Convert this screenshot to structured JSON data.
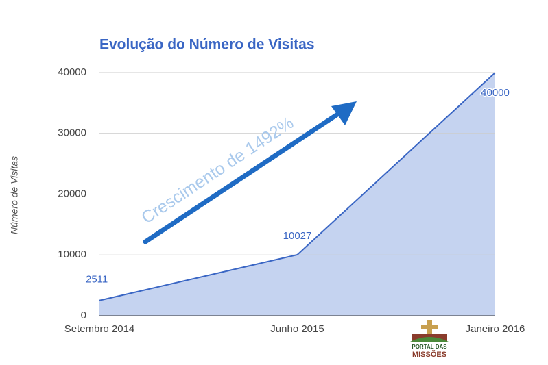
{
  "chart_data": {
    "type": "area",
    "title": "Evolução do Número de Visitas",
    "y_label": "Número de Visitas",
    "annotation": "Crescimento de 1492%",
    "logo": [
      "PORTAL DAS",
      "MISSÕES"
    ],
    "categories": [
      "Setembro 2014",
      "Junho 2015",
      "Janeiro 2016"
    ],
    "values": [
      2511,
      10027,
      40000
    ],
    "color": "#3a66c4",
    "fill": "#c5d3f0",
    "ylim": [
      0,
      40000
    ],
    "yticks": [
      0,
      10000,
      20000,
      30000,
      40000
    ],
    "grid": true
  }
}
